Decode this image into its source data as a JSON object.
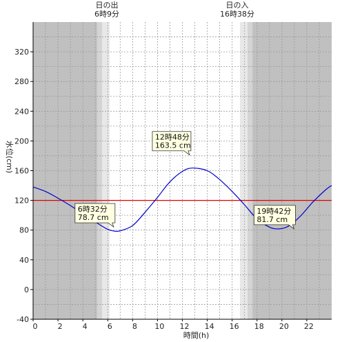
{
  "chart_data": {
    "type": "line",
    "xlabel": "時間(h)",
    "ylabel": "水位(cm)",
    "xlim": [
      0,
      24
    ],
    "ylim": [
      -40,
      360
    ],
    "x_ticks": [
      0,
      2,
      4,
      6,
      8,
      10,
      12,
      14,
      16,
      18,
      20,
      22
    ],
    "y_ticks": [
      -40,
      0,
      40,
      80,
      120,
      160,
      200,
      240,
      280,
      320
    ],
    "reference_line": {
      "value": 120,
      "color": "#e00000"
    },
    "sun": {
      "sunrise": {
        "title": "日の出",
        "time_label": "6時9分",
        "hour": 6.15
      },
      "sunset": {
        "title": "日の入",
        "time_label": "16時38分",
        "hour": 16.63
      }
    },
    "series": [
      {
        "color": "#0000cc",
        "x": [
          0,
          1,
          2,
          3,
          4,
          5,
          6,
          6.53,
          7,
          8,
          9,
          10,
          11,
          12,
          12.8,
          14,
          15,
          16,
          17,
          18,
          19,
          19.7,
          20.5,
          21.5,
          22.5,
          23.5,
          24
        ],
        "values": [
          138,
          132,
          123,
          113,
          102,
          91,
          81,
          78.7,
          79,
          86,
          104,
          124,
          145,
          159,
          163.5,
          160,
          148,
          132,
          114,
          95,
          84,
          81.7,
          85,
          99,
          118,
          134,
          140
        ]
      }
    ],
    "annotations": [
      {
        "time": "6時32分",
        "value": "78.7 cm",
        "x": 6.53,
        "y": 78.7
      },
      {
        "time": "12時48分",
        "value": "163.5 cm",
        "x": 12.8,
        "y": 163.5
      },
      {
        "time": "19時42分",
        "value": "81.7 cm",
        "x": 19.7,
        "y": 81.7
      }
    ],
    "colors": {
      "night": "#c0c0c0",
      "twilight_dark": "#d4d4d4",
      "twilight_light": "#e8e8e8",
      "day": "#ffffff",
      "grid": "#999999",
      "annotation_bg": "#ffffe1"
    }
  }
}
